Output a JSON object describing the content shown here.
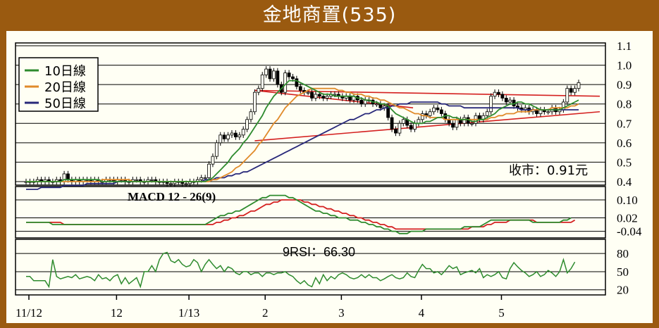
{
  "title": "金地商置(535)",
  "colors": {
    "frame": "#9a5a10",
    "panel_bg": "#fffff4",
    "ma10": "#2e8b2e",
    "ma20": "#e08a2a",
    "ma50": "#28287a",
    "trend": "#d42020",
    "macd": "#2e8b2e",
    "signal": "#d42020",
    "rsi": "#2e8b2e"
  },
  "legend": [
    {
      "label": "10日線",
      "color": "#2e8b2e"
    },
    {
      "label": "20日線",
      "color": "#e08a2a"
    },
    {
      "label": "50日線",
      "color": "#28287a"
    }
  ],
  "close_label": "收市：0.91元",
  "macd_label": "MACD 12 - 26(9)",
  "rsi_label": "9RSI：66.30",
  "chart_data": [
    {
      "type": "candlestick",
      "x_labels": [
        "11/12",
        "12",
        "1/13",
        "2",
        "3",
        "4",
        "5"
      ],
      "y_ticks": [
        1.1,
        1.0,
        0.9,
        0.8,
        0.7,
        0.6,
        0.5,
        0.4
      ],
      "ylim": [
        0.4,
        1.1
      ],
      "close": [
        0.4,
        0.4,
        0.4,
        0.41,
        0.4,
        0.41,
        0.4,
        0.4,
        0.41,
        0.4,
        0.44,
        0.41,
        0.4,
        0.41,
        0.4,
        0.41,
        0.41,
        0.4,
        0.41,
        0.4,
        0.4,
        0.41,
        0.41,
        0.4,
        0.41,
        0.41,
        0.4,
        0.4,
        0.41,
        0.41,
        0.4,
        0.4,
        0.41,
        0.41,
        0.4,
        0.4,
        0.4,
        0.39,
        0.39,
        0.4,
        0.4,
        0.39,
        0.39,
        0.4,
        0.4,
        0.41,
        0.42,
        0.42,
        0.49,
        0.53,
        0.6,
        0.64,
        0.62,
        0.64,
        0.65,
        0.63,
        0.64,
        0.67,
        0.72,
        0.76,
        0.86,
        0.88,
        0.95,
        0.98,
        0.93,
        0.97,
        0.9,
        0.86,
        0.96,
        0.94,
        0.93,
        0.89,
        0.87,
        0.86,
        0.86,
        0.83,
        0.85,
        0.84,
        0.83,
        0.84,
        0.85,
        0.85,
        0.84,
        0.83,
        0.84,
        0.82,
        0.84,
        0.82,
        0.8,
        0.82,
        0.82,
        0.8,
        0.8,
        0.78,
        0.79,
        0.73,
        0.67,
        0.65,
        0.7,
        0.72,
        0.69,
        0.67,
        0.7,
        0.72,
        0.75,
        0.74,
        0.76,
        0.78,
        0.77,
        0.75,
        0.72,
        0.7,
        0.68,
        0.72,
        0.7,
        0.73,
        0.7,
        0.7,
        0.74,
        0.72,
        0.74,
        0.76,
        0.84,
        0.86,
        0.85,
        0.83,
        0.81,
        0.82,
        0.79,
        0.78,
        0.77,
        0.78,
        0.76,
        0.77,
        0.75,
        0.77,
        0.76,
        0.76,
        0.78,
        0.76,
        0.77,
        0.81,
        0.88,
        0.86,
        0.88,
        0.91
      ],
      "series": [
        {
          "name": "10日線",
          "values": [
            0.4,
            0.4,
            0.4,
            0.4,
            0.4,
            0.4,
            0.4,
            0.4,
            0.4,
            0.4,
            0.41,
            0.41,
            0.41,
            0.41,
            0.41,
            0.41,
            0.41,
            0.41,
            0.41,
            0.41,
            0.4,
            0.4,
            0.4,
            0.4,
            0.4,
            0.4,
            0.4,
            0.4,
            0.4,
            0.4,
            0.4,
            0.4,
            0.4,
            0.4,
            0.4,
            0.4,
            0.4,
            0.4,
            0.4,
            0.4,
            0.4,
            0.4,
            0.4,
            0.4,
            0.4,
            0.4,
            0.4,
            0.4,
            0.41,
            0.42,
            0.44,
            0.46,
            0.48,
            0.5,
            0.53,
            0.55,
            0.57,
            0.6,
            0.62,
            0.65,
            0.68,
            0.71,
            0.74,
            0.78,
            0.81,
            0.84,
            0.86,
            0.88,
            0.9,
            0.92,
            0.92,
            0.92,
            0.91,
            0.9,
            0.89,
            0.88,
            0.87,
            0.86,
            0.85,
            0.85,
            0.85,
            0.84,
            0.84,
            0.84,
            0.84,
            0.84,
            0.84,
            0.83,
            0.83,
            0.82,
            0.82,
            0.81,
            0.81,
            0.8,
            0.8,
            0.79,
            0.77,
            0.75,
            0.74,
            0.73,
            0.72,
            0.71,
            0.7,
            0.7,
            0.7,
            0.71,
            0.71,
            0.72,
            0.73,
            0.73,
            0.74,
            0.74,
            0.73,
            0.73,
            0.72,
            0.72,
            0.72,
            0.71,
            0.71,
            0.72,
            0.72,
            0.73,
            0.74,
            0.75,
            0.77,
            0.78,
            0.79,
            0.8,
            0.8,
            0.81,
            0.81,
            0.8,
            0.8,
            0.79,
            0.78,
            0.77,
            0.77,
            0.77,
            0.77,
            0.77,
            0.77,
            0.78,
            0.79,
            0.8,
            0.81,
            0.82
          ]
        },
        {
          "name": "20日線",
          "values": [
            0.4,
            0.4,
            0.4,
            0.4,
            0.4,
            0.4,
            0.4,
            0.4,
            0.4,
            0.4,
            0.4,
            0.4,
            0.4,
            0.4,
            0.4,
            0.4,
            0.4,
            0.4,
            0.4,
            0.4,
            0.41,
            0.41,
            0.41,
            0.41,
            0.41,
            0.41,
            0.41,
            0.41,
            0.4,
            0.4,
            0.4,
            0.4,
            0.4,
            0.4,
            0.4,
            0.4,
            0.4,
            0.4,
            0.4,
            0.4,
            0.4,
            0.4,
            0.4,
            0.4,
            0.4,
            0.4,
            0.4,
            0.4,
            0.4,
            0.41,
            0.41,
            0.42,
            0.43,
            0.44,
            0.45,
            0.47,
            0.48,
            0.5,
            0.52,
            0.54,
            0.56,
            0.59,
            0.61,
            0.64,
            0.67,
            0.7,
            0.72,
            0.75,
            0.78,
            0.8,
            0.82,
            0.84,
            0.85,
            0.86,
            0.87,
            0.88,
            0.88,
            0.88,
            0.88,
            0.88,
            0.88,
            0.88,
            0.87,
            0.87,
            0.86,
            0.86,
            0.85,
            0.85,
            0.85,
            0.84,
            0.84,
            0.83,
            0.83,
            0.82,
            0.82,
            0.81,
            0.8,
            0.79,
            0.78,
            0.78,
            0.77,
            0.76,
            0.75,
            0.75,
            0.74,
            0.74,
            0.73,
            0.73,
            0.73,
            0.73,
            0.72,
            0.72,
            0.72,
            0.72,
            0.72,
            0.72,
            0.72,
            0.72,
            0.72,
            0.72,
            0.72,
            0.72,
            0.73,
            0.73,
            0.74,
            0.74,
            0.75,
            0.75,
            0.75,
            0.76,
            0.76,
            0.76,
            0.76,
            0.77,
            0.77,
            0.77,
            0.77,
            0.77,
            0.78,
            0.78,
            0.78,
            0.78,
            0.78,
            0.79,
            0.79,
            0.8
          ]
        },
        {
          "name": "50日線",
          "values": [
            0.36,
            0.36,
            0.36,
            0.36,
            0.37,
            0.37,
            0.37,
            0.37,
            0.37,
            0.37,
            0.38,
            0.38,
            0.38,
            0.38,
            0.38,
            0.38,
            0.39,
            0.39,
            0.39,
            0.39,
            0.39,
            0.39,
            0.39,
            0.39,
            0.4,
            0.4,
            0.4,
            0.4,
            0.4,
            0.4,
            0.4,
            0.4,
            0.4,
            0.4,
            0.4,
            0.4,
            0.4,
            0.4,
            0.4,
            0.4,
            0.4,
            0.4,
            0.4,
            0.4,
            0.4,
            0.4,
            0.4,
            0.41,
            0.41,
            0.41,
            0.42,
            0.42,
            0.42,
            0.43,
            0.43,
            0.44,
            0.44,
            0.45,
            0.45,
            0.46,
            0.47,
            0.48,
            0.49,
            0.5,
            0.51,
            0.52,
            0.53,
            0.54,
            0.55,
            0.56,
            0.57,
            0.58,
            0.59,
            0.6,
            0.61,
            0.62,
            0.63,
            0.64,
            0.65,
            0.66,
            0.67,
            0.68,
            0.69,
            0.7,
            0.71,
            0.72,
            0.72,
            0.73,
            0.74,
            0.75,
            0.75,
            0.76,
            0.77,
            0.77,
            0.78,
            0.78,
            0.79,
            0.79,
            0.8,
            0.8,
            0.8,
            0.81,
            0.81,
            0.81,
            0.81,
            0.81,
            0.81,
            0.81,
            0.81,
            0.8,
            0.8,
            0.79,
            0.79,
            0.79,
            0.79,
            0.78,
            0.78,
            0.78,
            0.78,
            0.78,
            0.78,
            0.78,
            0.78,
            0.78,
            0.78,
            0.78,
            0.78,
            0.78,
            0.78,
            0.78,
            0.77,
            0.77,
            0.77,
            0.77,
            0.77,
            0.77,
            0.77,
            0.77,
            0.77,
            0.77,
            0.77,
            0.77,
            0.77,
            0.77,
            0.77,
            0.77
          ]
        }
      ],
      "trendlines": [
        {
          "from": [
            60,
            0.87
          ],
          "to": [
            145,
            0.84
          ]
        },
        {
          "from": [
            60,
            0.87
          ],
          "to": [
            96,
            0.78
          ]
        },
        {
          "from": [
            60,
            0.61
          ],
          "to": [
            145,
            0.76
          ]
        }
      ]
    },
    {
      "type": "line",
      "title": "MACD 12 - 26(9)",
      "y_ticks": [
        0.1,
        0.02,
        -0.04
      ],
      "ylim": [
        -0.06,
        0.15
      ],
      "series": [
        {
          "name": "MACD",
          "values": [
            0.0,
            0.0,
            0.0,
            0.0,
            0.0,
            0.0,
            0.0,
            -0.01,
            -0.01,
            -0.01,
            -0.01,
            -0.01,
            -0.01,
            -0.01,
            -0.01,
            -0.01,
            -0.01,
            -0.01,
            -0.01,
            -0.01,
            -0.01,
            -0.01,
            -0.01,
            -0.01,
            -0.01,
            -0.01,
            -0.01,
            -0.01,
            -0.01,
            -0.01,
            -0.01,
            -0.01,
            -0.01,
            -0.01,
            -0.01,
            -0.01,
            -0.01,
            -0.01,
            -0.01,
            -0.01,
            -0.01,
            -0.01,
            -0.01,
            -0.01,
            -0.01,
            -0.01,
            -0.01,
            -0.01,
            0.0,
            0.01,
            0.02,
            0.03,
            0.03,
            0.04,
            0.04,
            0.05,
            0.05,
            0.06,
            0.07,
            0.08,
            0.09,
            0.1,
            0.11,
            0.11,
            0.12,
            0.12,
            0.12,
            0.12,
            0.12,
            0.11,
            0.11,
            0.1,
            0.09,
            0.08,
            0.07,
            0.06,
            0.05,
            0.05,
            0.04,
            0.04,
            0.03,
            0.03,
            0.02,
            0.02,
            0.02,
            0.01,
            0.01,
            0.01,
            0.0,
            0.0,
            -0.01,
            -0.01,
            -0.02,
            -0.02,
            -0.03,
            -0.03,
            -0.04,
            -0.04,
            -0.05,
            -0.05,
            -0.05,
            -0.04,
            -0.04,
            -0.04,
            -0.04,
            -0.03,
            -0.03,
            -0.03,
            -0.03,
            -0.03,
            -0.03,
            -0.03,
            -0.03,
            -0.03,
            -0.03,
            -0.02,
            -0.02,
            -0.02,
            -0.02,
            -0.02,
            -0.01,
            0.0,
            0.01,
            0.01,
            0.01,
            0.01,
            0.01,
            0.01,
            0.01,
            0.01,
            0.01,
            0.01,
            0.01,
            0.0,
            0.0,
            0.0,
            0.0,
            0.0,
            0.0,
            0.0,
            0.0,
            0.01,
            0.01,
            0.02
          ]
        },
        {
          "name": "Signal",
          "values": [
            0.0,
            0.0,
            0.0,
            0.0,
            0.0,
            0.0,
            0.0,
            0.0,
            0.0,
            0.0,
            -0.01,
            -0.01,
            -0.01,
            -0.01,
            -0.01,
            -0.01,
            -0.01,
            -0.01,
            -0.01,
            -0.01,
            -0.01,
            -0.01,
            -0.01,
            -0.01,
            -0.01,
            -0.01,
            -0.01,
            -0.01,
            -0.01,
            -0.01,
            -0.01,
            -0.01,
            -0.01,
            -0.01,
            -0.01,
            -0.01,
            -0.01,
            -0.01,
            -0.01,
            -0.01,
            -0.01,
            -0.01,
            -0.01,
            -0.01,
            -0.01,
            -0.01,
            -0.01,
            -0.01,
            -0.01,
            -0.01,
            0.0,
            0.0,
            0.01,
            0.01,
            0.02,
            0.02,
            0.03,
            0.03,
            0.04,
            0.05,
            0.05,
            0.06,
            0.07,
            0.08,
            0.08,
            0.09,
            0.09,
            0.1,
            0.1,
            0.1,
            0.1,
            0.1,
            0.1,
            0.09,
            0.09,
            0.08,
            0.08,
            0.07,
            0.07,
            0.06,
            0.06,
            0.05,
            0.05,
            0.04,
            0.04,
            0.03,
            0.03,
            0.02,
            0.02,
            0.01,
            0.01,
            0.0,
            0.0,
            -0.01,
            -0.01,
            -0.02,
            -0.02,
            -0.03,
            -0.03,
            -0.03,
            -0.03,
            -0.03,
            -0.03,
            -0.03,
            -0.03,
            -0.03,
            -0.03,
            -0.03,
            -0.03,
            -0.03,
            -0.03,
            -0.03,
            -0.03,
            -0.03,
            -0.03,
            -0.03,
            -0.03,
            -0.02,
            -0.02,
            -0.02,
            -0.02,
            -0.01,
            -0.01,
            0.0,
            0.0,
            0.0,
            0.0,
            0.01,
            0.01,
            0.01,
            0.01,
            0.01,
            0.01,
            0.01,
            0.0,
            0.0,
            0.0,
            0.0,
            0.0,
            0.0,
            0.0,
            0.0,
            0.0,
            0.0,
            0.01
          ]
        }
      ]
    },
    {
      "type": "line",
      "title": "9RSI：66.30",
      "y_ticks": [
        80,
        50,
        20
      ],
      "ylim": [
        15,
        100
      ],
      "series": [
        {
          "name": "9RSI",
          "values": [
            42,
            42,
            35,
            35,
            35,
            35,
            25,
            70,
            42,
            38,
            40,
            42,
            40,
            45,
            38,
            40,
            42,
            40,
            35,
            45,
            38,
            40,
            35,
            42,
            45,
            30,
            40,
            30,
            35,
            40,
            25,
            50,
            50,
            60,
            50,
            70,
            80,
            82,
            68,
            65,
            70,
            62,
            58,
            60,
            70,
            65,
            50,
            62,
            70,
            62,
            55,
            60,
            50,
            58,
            55,
            48,
            45,
            50,
            50,
            45,
            48,
            48,
            42,
            48,
            48,
            45,
            48,
            48,
            50,
            45,
            42,
            35,
            30,
            35,
            28,
            25,
            40,
            30,
            45,
            35,
            42,
            38,
            45,
            48,
            45,
            40,
            38,
            40,
            45,
            40,
            45,
            40,
            40,
            35,
            38,
            42,
            45,
            40,
            38,
            40,
            48,
            42,
            40,
            52,
            62,
            55,
            55,
            48,
            50,
            45,
            52,
            60,
            55,
            58,
            45,
            48,
            50,
            52,
            48,
            55,
            40,
            45,
            42,
            45,
            50,
            40,
            38,
            55,
            65,
            58,
            52,
            48,
            42,
            45,
            50,
            42,
            45,
            52,
            48,
            42,
            50,
            70,
            48,
            55,
            66
          ]
        }
      ]
    }
  ]
}
